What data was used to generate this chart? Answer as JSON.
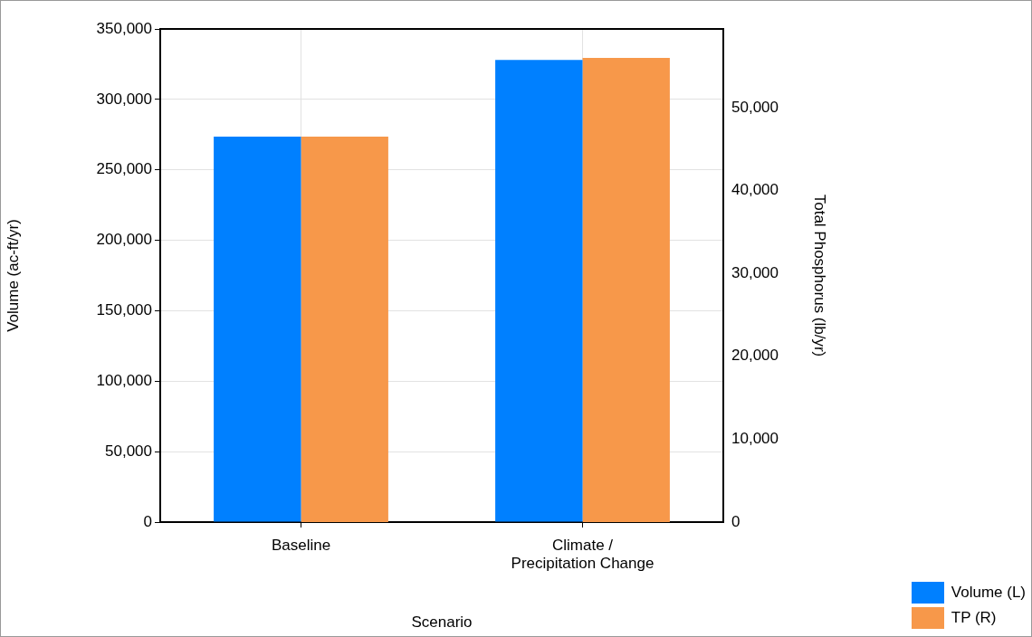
{
  "chart_data": {
    "type": "bar",
    "xlabel": "Scenario",
    "ylabel": "Volume (ac-ft/yr)",
    "y2label": "Total Phosphorus (lb/yr)",
    "categories": [
      "Baseline",
      "Climate / Precipitation Change"
    ],
    "series": [
      {
        "name": "Volume (L)",
        "color": "#0080ff",
        "values": [
          273500,
          328000
        ]
      },
      {
        "name": "TP (R)",
        "color": "#f7984a",
        "values": [
          46500,
          56000
        ],
        "axis": "y2"
      }
    ],
    "ylim": [
      0,
      350000
    ],
    "yticks": [
      0,
      {
        "value": 50000,
        "label": "50,000"
      },
      {
        "value": 100000,
        "label": "100,000"
      },
      {
        "value": 150000,
        "label": "150,000"
      },
      {
        "value": 200000,
        "label": "200,000"
      },
      {
        "value": 250000,
        "label": "250,000"
      },
      {
        "value": 300000,
        "label": "300,000"
      },
      {
        "value": 350000,
        "label": "350,000"
      }
    ],
    "y2lim": [
      0,
      59500
    ],
    "y2ticks": [
      0,
      {
        "value": 10000,
        "label": "10,000"
      },
      {
        "value": 20000,
        "label": "20,000"
      },
      {
        "value": 30000,
        "label": "30,000"
      },
      {
        "value": 40000,
        "label": "40,000"
      },
      {
        "value": 50000,
        "label": "50,000"
      }
    ],
    "grid": true,
    "legend": "bottom right"
  }
}
